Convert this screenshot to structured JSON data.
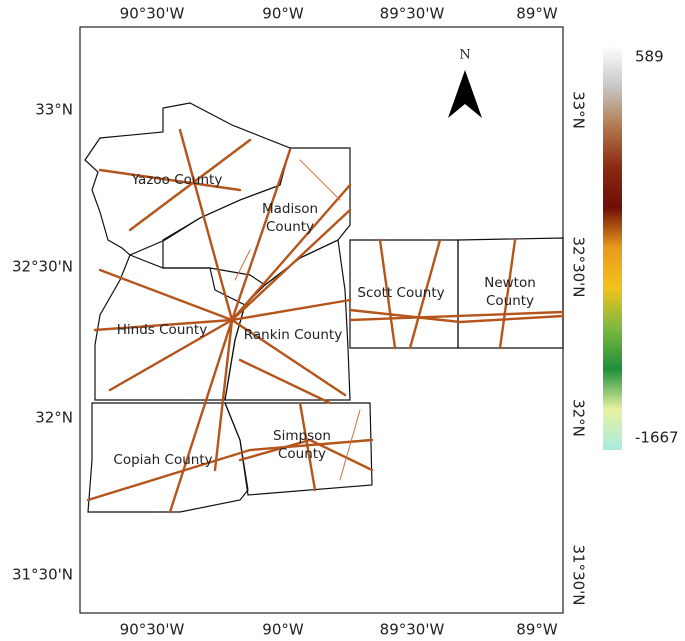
{
  "map": {
    "longitude_labels": [
      "90°30'W",
      "90°W",
      "89°30'W",
      "89°W"
    ],
    "latitude_labels": [
      "33°N",
      "32°30'N",
      "32°N",
      "31°30'N"
    ],
    "north": "N",
    "counties": [
      {
        "name_lines": [
          "Yazoo County"
        ]
      },
      {
        "name_lines": [
          "Madison",
          "County"
        ]
      },
      {
        "name_lines": [
          "Hinds County"
        ]
      },
      {
        "name_lines": [
          "Rankin County"
        ]
      },
      {
        "name_lines": [
          "Scott County"
        ]
      },
      {
        "name_lines": [
          "Newton",
          "County"
        ]
      },
      {
        "name_lines": [
          "Copiah County"
        ]
      },
      {
        "name_lines": [
          "Simpson",
          "County"
        ]
      }
    ],
    "colorbar": {
      "max": 589,
      "min": -1667,
      "colors": [
        "#ffffff",
        "#c9c9c9",
        "#b27a4e",
        "#8b2b12",
        "#6e0e08",
        "#e89a1c",
        "#f2c21c",
        "#7cb83f",
        "#1f8f3a",
        "#e8f2a0",
        "#a8ece0"
      ]
    }
  }
}
